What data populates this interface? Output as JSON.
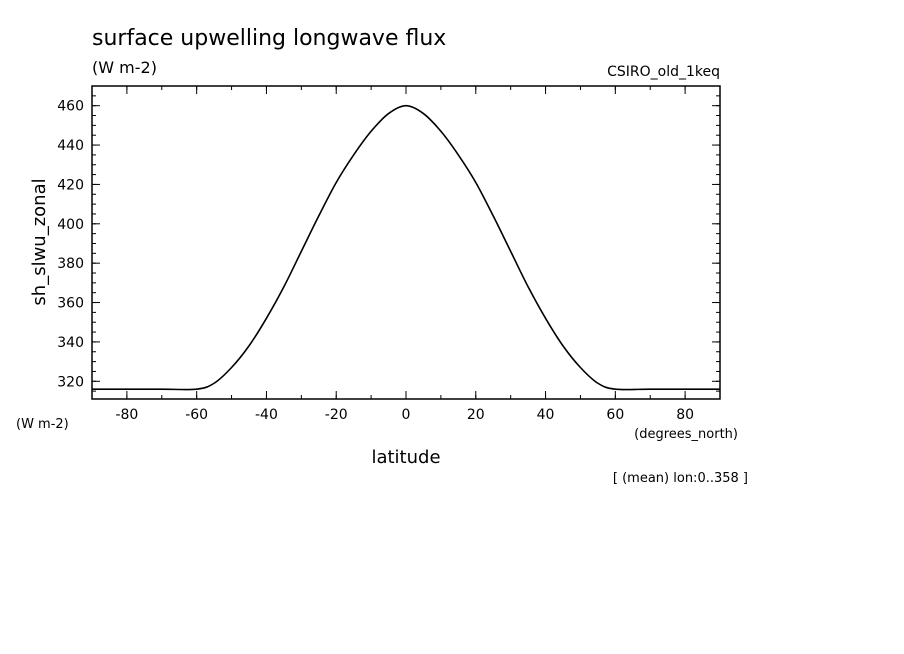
{
  "chart_data": {
    "type": "line",
    "title": "surface upwelling longwave flux",
    "subtitle": "(W m-2)",
    "dataset": "CSIRO_old_1keq",
    "xlabel": "latitude",
    "x_units": "(degrees_north)",
    "ylabel": "sh_slwu_zonal",
    "y_units": "(W m-2)",
    "footnote": "[ (mean) lon:0..358 ]",
    "xlim": [
      -90,
      90
    ],
    "ylim": [
      311,
      470
    ],
    "x_ticks": [
      -80,
      -60,
      -40,
      -20,
      0,
      20,
      40,
      60,
      80
    ],
    "x_tick_labels": [
      "-80",
      "-60",
      "-40",
      "-20",
      "0",
      "20",
      "40",
      "60",
      "80"
    ],
    "y_ticks": [
      320,
      340,
      360,
      380,
      400,
      420,
      440,
      460
    ],
    "y_tick_labels": [
      "320",
      "340",
      "360",
      "380",
      "400",
      "420",
      "440",
      "460"
    ],
    "grid": false,
    "series": [
      {
        "x": [
          -90,
          -80,
          -70,
          -60,
          -55,
          -50,
          -45,
          -40,
          -35,
          -30,
          -25,
          -20,
          -15,
          -10,
          -5,
          0,
          5,
          10,
          15,
          20,
          25,
          30,
          35,
          40,
          45,
          50,
          55,
          60,
          70,
          80,
          90
        ],
        "y": [
          316,
          316,
          316,
          316,
          319,
          327,
          338,
          352,
          368,
          386,
          404,
          421,
          435,
          447,
          456,
          460,
          456,
          447,
          435,
          421,
          404,
          386,
          368,
          352,
          338,
          327,
          319,
          316,
          316,
          316,
          316
        ]
      }
    ]
  }
}
